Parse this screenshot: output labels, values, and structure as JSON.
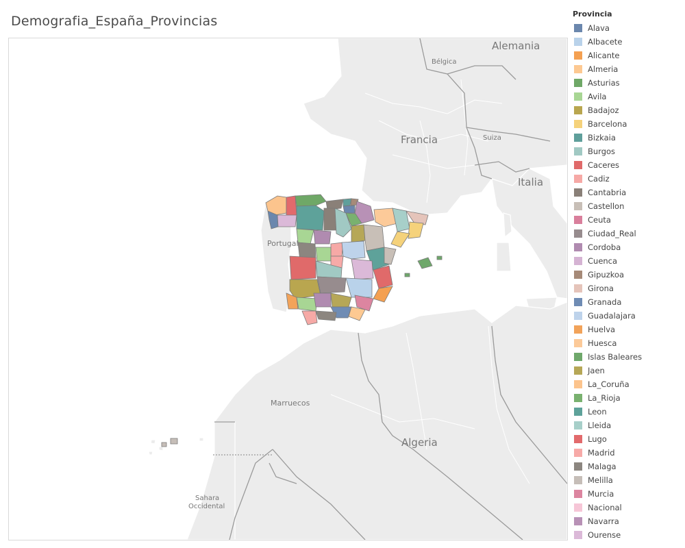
{
  "title": "Demografia_España_Provincias",
  "legend": {
    "title": "Provincia",
    "items": [
      {
        "label": "Alava",
        "color": "#6b87ad"
      },
      {
        "label": "Albacete",
        "color": "#b9d2ea"
      },
      {
        "label": "Alicante",
        "color": "#f4a051"
      },
      {
        "label": "Almeria",
        "color": "#fdc992"
      },
      {
        "label": "Asturias",
        "color": "#6fa867"
      },
      {
        "label": "Avila",
        "color": "#a8d694"
      },
      {
        "label": "Badajoz",
        "color": "#b9a64f"
      },
      {
        "label": "Barcelona",
        "color": "#f5d27b"
      },
      {
        "label": "Bizkaia",
        "color": "#5f9f9b"
      },
      {
        "label": "Burgos",
        "color": "#a1c9c3"
      },
      {
        "label": "Caceres",
        "color": "#e06a6a"
      },
      {
        "label": "Cadiz",
        "color": "#f6a9a6"
      },
      {
        "label": "Cantabria",
        "color": "#8a8078"
      },
      {
        "label": "Castellon",
        "color": "#c8bfb7"
      },
      {
        "label": "Ceuta",
        "color": "#d97f9c"
      },
      {
        "label": "Ciudad_Real",
        "color": "#978c8e"
      },
      {
        "label": "Cordoba",
        "color": "#b08bb0"
      },
      {
        "label": "Cuenca",
        "color": "#d5b3d3"
      },
      {
        "label": "Gipuzkoa",
        "color": "#a68a78"
      },
      {
        "label": "Girona",
        "color": "#e5c4ba"
      },
      {
        "label": "Granada",
        "color": "#6f8cb4"
      },
      {
        "label": "Guadalajara",
        "color": "#bed3eb"
      },
      {
        "label": "Huelva",
        "color": "#f2a35a"
      },
      {
        "label": "Huesca",
        "color": "#fcca99"
      },
      {
        "label": "Islas Baleares",
        "color": "#6fa86b"
      },
      {
        "label": "Jaen",
        "color": "#b6a757"
      },
      {
        "label": "La_Coruña",
        "color": "#fcc48d"
      },
      {
        "label": "La_Rioja",
        "color": "#79b16f"
      },
      {
        "label": "Leon",
        "color": "#5ea29a"
      },
      {
        "label": "Lleida",
        "color": "#a7cfc9"
      },
      {
        "label": "Lugo",
        "color": "#e26a6c"
      },
      {
        "label": "Madrid",
        "color": "#f7aaa8"
      },
      {
        "label": "Malaga",
        "color": "#8c8680"
      },
      {
        "label": "Melilla",
        "color": "#c6beb8"
      },
      {
        "label": "Murcia",
        "color": "#dc85a0"
      },
      {
        "label": "Nacional",
        "color": "#f6c6d7"
      },
      {
        "label": "Navarra",
        "color": "#b891b6"
      },
      {
        "label": "Ourense",
        "color": "#dbb9d8"
      }
    ]
  },
  "map": {
    "labels": {
      "alemania": "Alemania",
      "belgica": "Bélgica",
      "francia": "Francia",
      "suiza": "Suiza",
      "italia": "Italia",
      "portugal": "Portugal",
      "marruecos": "Marruecos",
      "algeria": "Algeria",
      "sahara": "Sahara",
      "occidental": "Occidental"
    },
    "colors": {
      "water": "#ffffff",
      "land": "#ececec",
      "border": "#ffffff",
      "province_stroke": "#777777"
    }
  }
}
